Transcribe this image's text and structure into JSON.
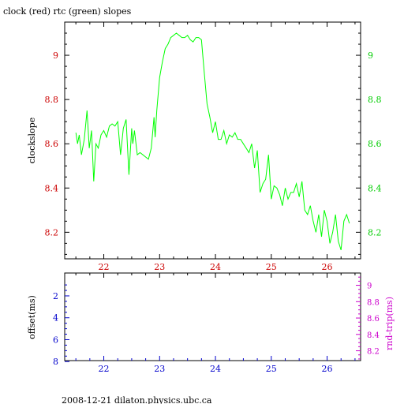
{
  "chart_data": [
    {
      "type": "line",
      "title": "clock (red) rtc (green) slopes",
      "ylabel": "clockslope",
      "xlim": [
        21.3,
        26.6
      ],
      "ylim": [
        8.08,
        9.15
      ],
      "x_ticks": [
        "22",
        "23",
        "24",
        "25",
        "26"
      ],
      "y_ticks_left": [
        "8.2",
        "8.4",
        "8.6",
        "8.8",
        "9"
      ],
      "y_ticks_right": [
        "8.2",
        "8.4",
        "8.6",
        "8.8",
        "9"
      ],
      "colors": {
        "axis": "#000000",
        "left_ticks": "#cc0000",
        "right_ticks": "#00cc00",
        "series_rtc": "#00ff00"
      },
      "series": [
        {
          "color": "#00ff00",
          "x": [
            21.5,
            21.53,
            21.56,
            21.6,
            21.65,
            21.7,
            21.74,
            21.78,
            21.82,
            21.86,
            21.9,
            21.95,
            22.0,
            22.05,
            22.1,
            22.15,
            22.2,
            22.25,
            22.3,
            22.35,
            22.4,
            22.45,
            22.5,
            22.52,
            22.55,
            22.6,
            22.65,
            22.7,
            22.75,
            22.8,
            22.85,
            22.9,
            22.92,
            22.95,
            23.0,
            23.05,
            23.1,
            23.15,
            23.2,
            23.25,
            23.3,
            23.35,
            23.4,
            23.45,
            23.5,
            23.55,
            23.6,
            23.65,
            23.7,
            23.75,
            23.8,
            23.85,
            23.9,
            23.95,
            24.0,
            24.05,
            24.1,
            24.15,
            24.2,
            24.25,
            24.3,
            24.35,
            24.4,
            24.45,
            24.5,
            24.55,
            24.6,
            24.65,
            24.7,
            24.75,
            24.8,
            24.85,
            24.9,
            24.95,
            25.0,
            25.05,
            25.1,
            25.15,
            25.2,
            25.25,
            25.3,
            25.35,
            25.4,
            25.45,
            25.5,
            25.55,
            25.6,
            25.65,
            25.7,
            25.75,
            25.8,
            25.85,
            25.9,
            25.95,
            26.0,
            26.05,
            26.1,
            26.15,
            26.2,
            26.25,
            26.3,
            26.35,
            26.4
          ],
          "y": [
            8.65,
            8.6,
            8.64,
            8.55,
            8.62,
            8.75,
            8.58,
            8.66,
            8.43,
            8.6,
            8.58,
            8.64,
            8.66,
            8.63,
            8.68,
            8.69,
            8.68,
            8.7,
            8.55,
            8.67,
            8.71,
            8.46,
            8.67,
            8.6,
            8.66,
            8.55,
            8.56,
            8.55,
            8.54,
            8.53,
            8.58,
            8.72,
            8.63,
            8.75,
            8.9,
            8.97,
            9.03,
            9.05,
            9.08,
            9.09,
            9.1,
            9.09,
            9.08,
            9.08,
            9.09,
            9.07,
            9.06,
            9.08,
            9.08,
            9.07,
            8.92,
            8.78,
            8.72,
            8.65,
            8.7,
            8.62,
            8.62,
            8.66,
            8.6,
            8.64,
            8.63,
            8.65,
            8.62,
            8.62,
            8.6,
            8.58,
            8.56,
            8.6,
            8.49,
            8.57,
            8.38,
            8.42,
            8.44,
            8.55,
            8.35,
            8.41,
            8.4,
            8.37,
            8.32,
            8.4,
            8.35,
            8.38,
            8.38,
            8.42,
            8.36,
            8.43,
            8.3,
            8.28,
            8.32,
            8.25,
            8.2,
            8.28,
            8.18,
            8.3,
            8.25,
            8.15,
            8.2,
            8.28,
            8.16,
            8.12,
            8.25,
            8.28,
            8.24
          ]
        }
      ]
    },
    {
      "type": "line",
      "ylabel": "offset(ms)",
      "ylabel_right": "rnd-trip(ms)",
      "xlim": [
        21.3,
        26.6
      ],
      "x_ticks": [
        "22",
        "23",
        "24",
        "25",
        "26"
      ],
      "y_ticks_left": [
        "2",
        "4",
        "6",
        "8"
      ],
      "y_ticks_right": [
        "8.2",
        "8.4",
        "8.6",
        "8.8",
        "9"
      ],
      "colors": {
        "left_ticks": "#0000cc",
        "right_ticks": "#cc00cc"
      },
      "series": []
    }
  ],
  "footer": "2008-12-21 dilaton.physics.ubc.ca"
}
